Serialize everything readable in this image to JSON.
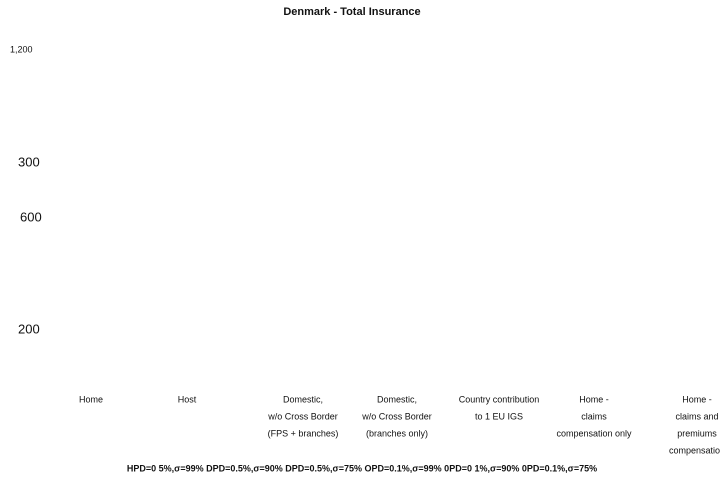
{
  "title": "Denmark - Total Insurance",
  "y_labels": [
    "1,200",
    "300",
    "600",
    "200"
  ],
  "categories": [
    [
      "Home"
    ],
    [
      "Host"
    ],
    [
      "Domestic,",
      "w/o Cross Border",
      "(FPS + branches)"
    ],
    [
      "Domestic,",
      "w/o Cross Border",
      "(branches only)"
    ],
    [
      "Country contribution",
      "to 1 EU IGS"
    ],
    [
      "Home -",
      "claims",
      "compensation only"
    ],
    [
      "Home -",
      "claims and",
      "premiums",
      "compensation"
    ]
  ],
  "footer": "HPD=0 5%,σ=99% DPD=0.5%,σ=90% DPD=0.5%,σ=75% OPD=0.1%,σ=99% 0PD=0 1%,σ=90% 0PD=0.1%,σ=75%"
}
